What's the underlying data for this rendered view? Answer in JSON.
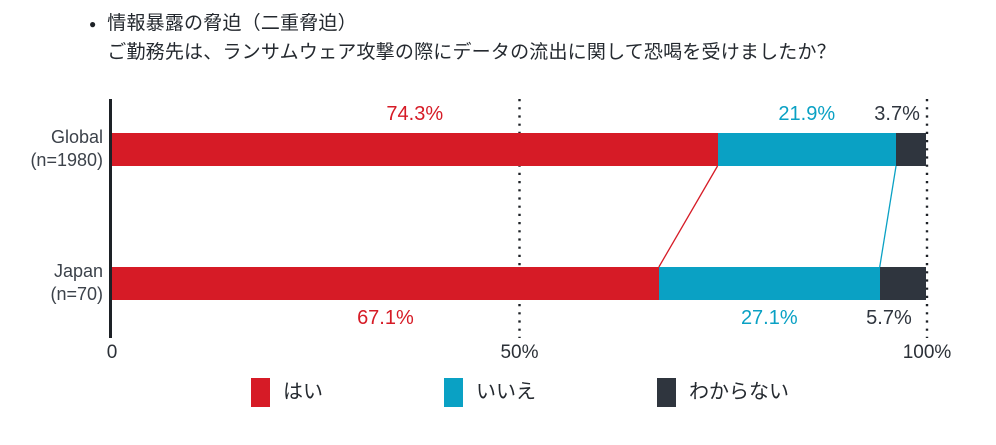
{
  "title": {
    "bullet": "●",
    "line1": "情報暴露の脅迫（二重脅迫）",
    "line2": "ご勤務先は、ランサムウェア攻撃の際にデータの流出に関して恐喝を受けましたか？"
  },
  "chart_data": {
    "type": "bar",
    "orientation": "horizontal",
    "stacked": true,
    "unit": "%",
    "x_min": 0,
    "x_max": 100,
    "gridlines_at": [
      50,
      100
    ],
    "grid_style": "dotted",
    "legend_position": "bottom",
    "series": [
      {
        "name": "はい",
        "color": "#d61b26"
      },
      {
        "name": "いいえ",
        "color": "#0aa1c4"
      },
      {
        "name": "わからない",
        "color": "#2f353e"
      }
    ],
    "rows": [
      {
        "category": "Global",
        "n_label": "(n=1980)",
        "values": [
          74.3,
          21.9,
          3.7
        ],
        "value_labels": [
          "74.3%",
          "21.9%",
          "3.7%"
        ],
        "value_label_position": "above"
      },
      {
        "category": "Japan",
        "n_label": "(n=70)",
        "values": [
          67.1,
          27.1,
          5.7
        ],
        "value_labels": [
          "67.1%",
          "27.1%",
          "5.7%"
        ],
        "value_label_position": "below"
      }
    ],
    "x_ticks": [
      {
        "at": 0,
        "label": "0"
      },
      {
        "at": 50,
        "label": "50%"
      },
      {
        "at": 100,
        "label": "100%"
      }
    ],
    "connectors": [
      {
        "after_series": 0,
        "color": "#d61b26"
      },
      {
        "after_series": 1,
        "color": "#0aa1c4"
      }
    ],
    "axis_color": "#1d2126"
  }
}
